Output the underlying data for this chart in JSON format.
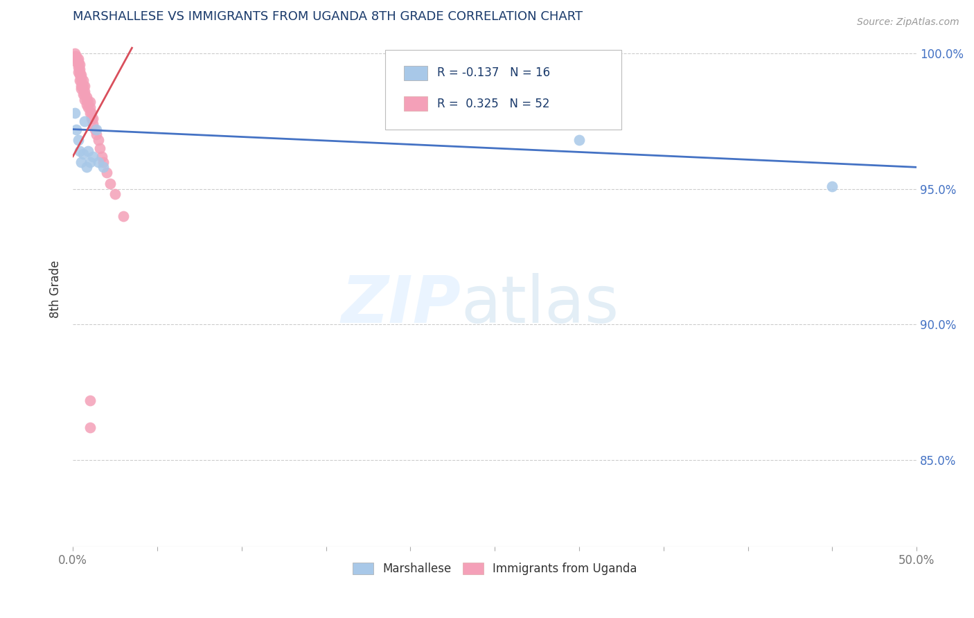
{
  "title": "MARSHALLESE VS IMMIGRANTS FROM UGANDA 8TH GRADE CORRELATION CHART",
  "source": "Source: ZipAtlas.com",
  "ylabel": "8th Grade",
  "xmin": 0.0,
  "xmax": 0.5,
  "ymin": 0.818,
  "ymax": 1.008,
  "color_marshallese": "#a8c8e8",
  "color_uganda": "#f4a0b8",
  "color_line_marshallese": "#4472c4",
  "color_line_uganda": "#d94f5c",
  "watermark_zip": "ZIP",
  "watermark_atlas": "atlas",
  "marshallese_x": [
    0.001,
    0.002,
    0.003,
    0.004,
    0.005,
    0.006,
    0.007,
    0.008,
    0.009,
    0.01,
    0.012,
    0.014,
    0.015,
    0.018,
    0.3,
    0.45
  ],
  "marshallese_y": [
    0.978,
    0.972,
    0.968,
    0.964,
    0.96,
    0.963,
    0.975,
    0.958,
    0.964,
    0.96,
    0.962,
    0.972,
    0.96,
    0.958,
    0.968,
    0.951
  ],
  "uganda_x": [
    0.001,
    0.001,
    0.002,
    0.002,
    0.002,
    0.003,
    0.003,
    0.003,
    0.003,
    0.003,
    0.004,
    0.004,
    0.004,
    0.004,
    0.004,
    0.005,
    0.005,
    0.005,
    0.005,
    0.005,
    0.006,
    0.006,
    0.006,
    0.006,
    0.007,
    0.007,
    0.007,
    0.007,
    0.008,
    0.008,
    0.008,
    0.009,
    0.009,
    0.01,
    0.01,
    0.01,
    0.011,
    0.011,
    0.012,
    0.012,
    0.013,
    0.014,
    0.015,
    0.016,
    0.017,
    0.018,
    0.02,
    0.022,
    0.025,
    0.03,
    0.01,
    0.01
  ],
  "uganda_y": [
    1.0,
    0.999,
    0.999,
    0.998,
    0.997,
    0.998,
    0.997,
    0.996,
    0.995,
    0.993,
    0.996,
    0.994,
    0.993,
    0.992,
    0.99,
    0.992,
    0.991,
    0.99,
    0.988,
    0.987,
    0.99,
    0.988,
    0.987,
    0.985,
    0.988,
    0.986,
    0.985,
    0.983,
    0.984,
    0.983,
    0.981,
    0.982,
    0.98,
    0.982,
    0.98,
    0.978,
    0.978,
    0.976,
    0.976,
    0.974,
    0.972,
    0.97,
    0.968,
    0.965,
    0.962,
    0.96,
    0.956,
    0.952,
    0.948,
    0.94,
    0.872,
    0.862
  ],
  "marshallese_line_x0": 0.0,
  "marshallese_line_x1": 0.5,
  "marshallese_line_y0": 0.972,
  "marshallese_line_y1": 0.958,
  "uganda_line_x0": 0.0,
  "uganda_line_x1": 0.035,
  "uganda_line_y0": 0.962,
  "uganda_line_y1": 1.002
}
